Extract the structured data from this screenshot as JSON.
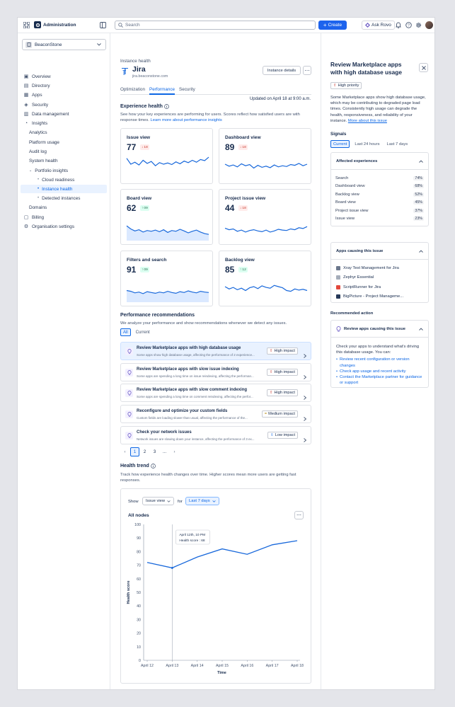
{
  "topbar": {
    "app_name": "Administration",
    "search_placeholder": "Search",
    "create_label": "Create",
    "ask_rovo_label": "Ask Rovo"
  },
  "sidebar": {
    "workspace": "BeaconStone",
    "items": [
      {
        "label": "Overview",
        "icon": "overview-icon"
      },
      {
        "label": "Directory",
        "icon": "directory-icon"
      },
      {
        "label": "Apps",
        "icon": "apps-icon"
      },
      {
        "label": "Security",
        "icon": "security-icon"
      },
      {
        "label": "Data management",
        "icon": "data-icon"
      },
      {
        "label": "Insights",
        "icon": "insights-icon"
      },
      {
        "label": "Analytics"
      },
      {
        "label": "Platform usage"
      },
      {
        "label": "Audit log"
      },
      {
        "label": "System health"
      },
      {
        "label": "Portfolio insights"
      },
      {
        "label": "Cloud readiness"
      },
      {
        "label": "Instance health"
      },
      {
        "label": "Detected instances"
      },
      {
        "label": "Domains"
      },
      {
        "label": "Billing",
        "icon": "billing-icon"
      },
      {
        "label": "Organisation settings",
        "icon": "gear-icon"
      }
    ]
  },
  "main": {
    "breadcrumb": "Instance health",
    "product": "Jira",
    "url": "jira.beaconstone.com",
    "instance_details_label": "Instance details",
    "tabs": [
      "Optimization",
      "Performance",
      "Security"
    ],
    "updated": "Updated on April 18 at 9:00 a.m.",
    "experience_health": {
      "title": "Experience health",
      "description": "See how your key experiences are performing for users. Scores reflect how satisfied users are with response times.",
      "link": "Learn more about performance insights",
      "cards": [
        {
          "title": "Issue view",
          "value": "77",
          "delta": "18",
          "dir": "down"
        },
        {
          "title": "Dashboard view",
          "value": "89",
          "delta": "18",
          "dir": "down"
        },
        {
          "title": "Board view",
          "value": "62",
          "delta": "09",
          "dir": "up"
        },
        {
          "title": "Project issue view",
          "value": "44",
          "delta": "18",
          "dir": "down"
        },
        {
          "title": "Filters and search",
          "value": "91",
          "delta": "09",
          "dir": "up"
        },
        {
          "title": "Backlog view",
          "value": "85",
          "delta": "12",
          "dir": "up"
        }
      ]
    },
    "recommendations": {
      "title": "Performance recommendations",
      "description": "We analyze your performance and show recommendations whenever we detect any issues.",
      "filters": [
        "All",
        "Current"
      ],
      "items": [
        {
          "title": "Review Marketplace apps with high database usage",
          "desc": "Some apps show high database usage, affecting the performance of 2 experience...",
          "impact": "High impact",
          "level": "high"
        },
        {
          "title": "Review Marketplace apps with slow issue indexing",
          "desc": "Some apps are spending a long time on issue reindexing, affecting the performan...",
          "impact": "High impact",
          "level": "high"
        },
        {
          "title": "Review Marketplace apps with slow comment indexing",
          "desc": "Some apps are spending a long time on comment reindexing, affecting the perfor...",
          "impact": "High impact",
          "level": "high"
        },
        {
          "title": "Reconfigure and optimize your custom fields",
          "desc": "Custom fields are loading slower than usual, affecting the performance of the...",
          "impact": "Medium impact",
          "level": "medium"
        },
        {
          "title": "Check your network issues",
          "desc": "Network issues are slowing down your instance, affecting the performance of 3 ex...",
          "impact": "Low impact",
          "level": "low"
        }
      ],
      "pagination": [
        "1",
        "2",
        "3",
        "..."
      ]
    },
    "health_trend": {
      "title": "Health trend",
      "description": "Track how experience health changes over time. Higher scores mean more users are getting fast responses.",
      "show_label": "Show",
      "show_value": "Issue view",
      "for_label": "for",
      "for_value": "Last 7 days",
      "chart_title": "All nodes",
      "tooltip_date": "April 12th, 10 PM",
      "tooltip_value": "Health score : 68"
    }
  },
  "chart_data": {
    "type": "line",
    "title": "All nodes",
    "xlabel": "Time",
    "ylabel": "Health score",
    "x": [
      "April 12",
      "April 13",
      "April 14",
      "April 15",
      "April 16",
      "April 17",
      "April 18"
    ],
    "series": [
      {
        "values": [
          72,
          68,
          76,
          82,
          78,
          85,
          88
        ]
      }
    ],
    "ylim": [
      0,
      100
    ],
    "yticks": [
      0,
      10,
      20,
      30,
      40,
      50,
      60,
      70,
      80,
      90,
      100
    ],
    "grid": false
  },
  "panel": {
    "title": "Review Marketplace apps with high database usage",
    "priority": "High priority",
    "description": "Some Marketplace apps show high database usage, which may be contributing to degraded page load times. Consistently high usage can degrade the health, responsiveness, and reliability of your instance.",
    "more_link": "More about this issue",
    "signals_title": "Signals",
    "signal_tabs": [
      "Current",
      "Last 24 hours",
      "Last 7 days"
    ],
    "affected_title": "Affected experiences",
    "affected": [
      {
        "name": "Search",
        "pct": "74%"
      },
      {
        "name": "Dashboard view",
        "pct": "68%"
      },
      {
        "name": "Backlog view",
        "pct": "52%"
      },
      {
        "name": "Board view",
        "pct": "45%"
      },
      {
        "name": "Project issue view",
        "pct": "37%"
      },
      {
        "name": "Issue view",
        "pct": "23%"
      }
    ],
    "apps_title": "Apps causing this issue",
    "apps": [
      {
        "name": "Xray Test Management for Jira",
        "color": "#6b778c"
      },
      {
        "name": "Zephyr Essential",
        "color": "#a5adba"
      },
      {
        "name": "ScriptRunner for Jira",
        "color": "#e2483d"
      },
      {
        "name": "BigPicture - Project Manageme...",
        "color": "#253858"
      }
    ],
    "recommended_title": "Recommended action",
    "action_title": "Review apps causing this issue",
    "action_intro": "Check your apps to understand what's driving this database usage. You can:",
    "action_items": [
      "Review recent configuration or version changes",
      "Check app usage and recent activity",
      "Contact the Marketplace partner for guidance or support"
    ]
  }
}
